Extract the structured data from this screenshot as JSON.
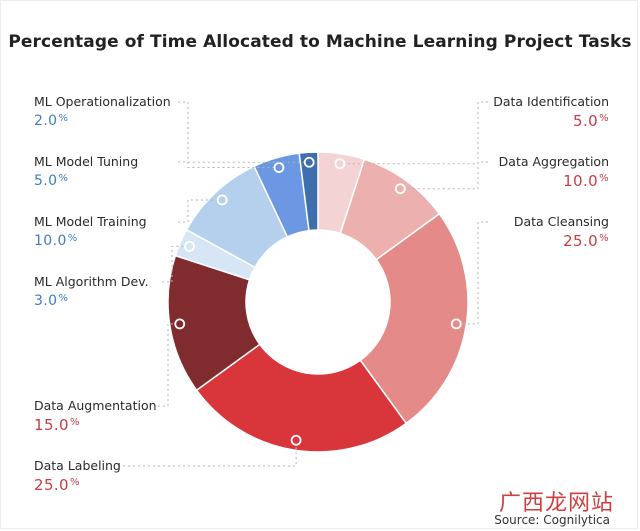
{
  "chart_data": {
    "type": "pie",
    "title": "Percentage of Time Allocated to Machine Learning Project Tasks",
    "donut": true,
    "slices": [
      {
        "label": "Data Identification",
        "value": 5.0,
        "display": "5.0",
        "color": "#f3d3d3"
      },
      {
        "label": "Data Aggregation",
        "value": 10.0,
        "display": "10.0",
        "color": "#ecb0ae"
      },
      {
        "label": "Data Cleansing",
        "value": 25.0,
        "display": "25.0",
        "color": "#e48a88"
      },
      {
        "label": "Data Labeling",
        "value": 25.0,
        "display": "25.0",
        "color": "#d9363b"
      },
      {
        "label": "Data Augmentation",
        "value": 15.0,
        "display": "15.0",
        "color": "#802b2e"
      },
      {
        "label": "ML Algorithm Dev.",
        "value": 3.0,
        "display": "3.0",
        "color": "#d6e6f4"
      },
      {
        "label": "ML Model Training",
        "value": 10.0,
        "display": "10.0",
        "color": "#b5d0ec"
      },
      {
        "label": "ML Model Tuning",
        "value": 5.0,
        "display": "5.0",
        "color": "#6b97e3"
      },
      {
        "label": "ML Operationalization",
        "value": 2.0,
        "display": "2.0",
        "color": "#3f6fac"
      }
    ],
    "unit": "%"
  },
  "source": "Source: Cognilytica",
  "watermark": "广西龙网站"
}
